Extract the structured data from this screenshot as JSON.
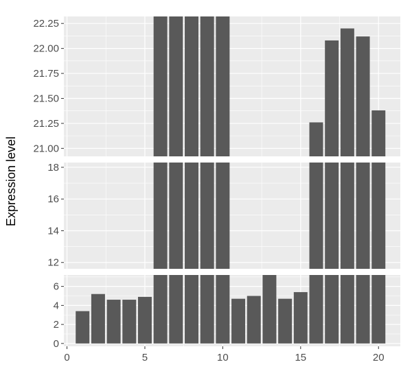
{
  "chart_data": {
    "type": "bar",
    "ylabel": "Expression level",
    "xlabel": "",
    "title": "",
    "x": [
      1,
      2,
      3,
      4,
      5,
      6,
      7,
      8,
      9,
      10,
      11,
      12,
      13,
      14,
      15,
      16,
      17,
      18,
      19,
      20
    ],
    "values": [
      3.4,
      5.2,
      4.6,
      4.6,
      4.9,
      23,
      23,
      23,
      23,
      23,
      4.7,
      5.0,
      7.2,
      4.7,
      5.4,
      21.26,
      22.08,
      22.2,
      22.12,
      21.38
    ],
    "xlim": [
      -0.2,
      21.4
    ],
    "x_ticks": [
      0,
      5,
      10,
      15,
      20
    ],
    "x_tick_labels": [
      "0",
      "5",
      "10",
      "15",
      "20"
    ],
    "grid": true,
    "broken_axis": true,
    "segments": [
      {
        "ylim": [
          20.92,
          22.32
        ],
        "ticks": [
          21.0,
          21.25,
          21.5,
          21.75,
          22.0,
          22.25
        ],
        "tick_labels": [
          "21.00",
          "21.25",
          "21.50",
          "21.75",
          "22.00",
          "22.25"
        ]
      },
      {
        "ylim": [
          11.6,
          18.3
        ],
        "ticks": [
          12,
          14,
          16,
          18
        ],
        "tick_labels": [
          "12",
          "14",
          "16",
          "18"
        ]
      },
      {
        "ylim": [
          -0.3,
          7.2
        ],
        "ticks": [
          0,
          2,
          4,
          6
        ],
        "tick_labels": [
          "0",
          "2",
          "4",
          "6"
        ]
      }
    ],
    "colors": {
      "bar": "#595959",
      "panel": "#ebebeb",
      "grid": "#ffffff"
    }
  }
}
